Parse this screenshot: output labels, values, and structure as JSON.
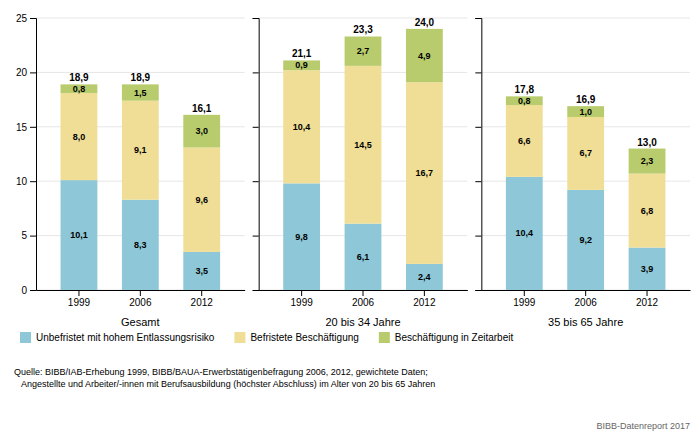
{
  "chart_data": [
    {
      "type": "bar",
      "stacked": true,
      "xlabel": "Gesamt",
      "categories": [
        "1999",
        "2006",
        "2012"
      ],
      "series": [
        {
          "name": "Unbefristet mit hohem Entlassungsrisiko",
          "color": "#8ec8d8",
          "values": [
            10.1,
            8.3,
            3.5
          ],
          "value_labels": [
            "10,1",
            "8,3",
            "3,5"
          ]
        },
        {
          "name": "Befristete Beschäftigung",
          "color": "#f0de96",
          "values": [
            8.0,
            9.1,
            9.6
          ],
          "value_labels": [
            "8,0",
            "9,1",
            "9,6"
          ]
        },
        {
          "name": "Beschäftigung in Zeitarbeit",
          "color": "#b8cc6e",
          "values": [
            0.8,
            1.5,
            3.0
          ],
          "value_labels": [
            "0,8",
            "1,5",
            "3,0"
          ]
        }
      ],
      "totals": [
        18.9,
        18.9,
        16.1
      ],
      "total_labels": [
        "18,9",
        "18,9",
        "16,1"
      ],
      "ylim": [
        0,
        25
      ],
      "yticks": [
        0,
        5,
        10,
        15,
        20,
        25
      ],
      "grid": true,
      "data_labels": true,
      "legend": "bottom"
    },
    {
      "type": "bar",
      "stacked": true,
      "xlabel": "20 bis 34 Jahre",
      "categories": [
        "1999",
        "2006",
        "2012"
      ],
      "series": [
        {
          "name": "Unbefristet mit hohem Entlassungsrisiko",
          "color": "#8ec8d8",
          "values": [
            9.8,
            6.1,
            2.4
          ],
          "value_labels": [
            "9,8",
            "6,1",
            "2,4"
          ]
        },
        {
          "name": "Befristete Beschäftigung",
          "color": "#f0de96",
          "values": [
            10.4,
            14.5,
            16.7
          ],
          "value_labels": [
            "10,4",
            "14,5",
            "16,7"
          ]
        },
        {
          "name": "Beschäftigung in Zeitarbeit",
          "color": "#b8cc6e",
          "values": [
            0.9,
            2.7,
            4.9
          ],
          "value_labels": [
            "0,9",
            "2,7",
            "4,9"
          ]
        }
      ],
      "totals": [
        21.1,
        23.3,
        24.0
      ],
      "total_labels": [
        "21,1",
        "23,3",
        "24,0"
      ],
      "ylim": [
        0,
        25
      ],
      "yticks": [
        0,
        5,
        10,
        15,
        20,
        25
      ],
      "grid": true,
      "data_labels": true,
      "tick_labels": "x"
    },
    {
      "type": "bar",
      "stacked": true,
      "xlabel": "35 bis 65 Jahre",
      "categories": [
        "1999",
        "2006",
        "2012"
      ],
      "series": [
        {
          "name": "Unbefristet mit hohem Entlassungsrisiko",
          "color": "#8ec8d8",
          "values": [
            10.4,
            9.2,
            3.9
          ],
          "value_labels": [
            "10,4",
            "9,2",
            "3,9"
          ]
        },
        {
          "name": "Befristete Beschäftigung",
          "color": "#f0de96",
          "values": [
            6.6,
            6.7,
            6.8
          ],
          "value_labels": [
            "6,6",
            "6,7",
            "6,8"
          ]
        },
        {
          "name": "Beschäftigung in Zeitarbeit",
          "color": "#b8cc6e",
          "values": [
            0.8,
            1.0,
            2.3
          ],
          "value_labels": [
            "0,8",
            "1,0",
            "2,3"
          ]
        }
      ],
      "totals": [
        17.8,
        16.9,
        13.0
      ],
      "total_labels": [
        "17,8",
        "16,9",
        "13,0"
      ],
      "ylim": [
        0,
        25
      ],
      "yticks": [
        0,
        5,
        10,
        15,
        20,
        25
      ],
      "grid": true,
      "data_labels": true,
      "tick_labels": "x"
    }
  ],
  "annotations": [
    "Quelle: BIBB/IAB-Erhebung 1999, BIBB/BAUA-Erwerbstätigenbefragung 2006, 2012, gewichtete Daten;\n   Angestellte und Arbeiter/-innen mit Berufsausbildung (höchster Abschluss) im Alter von 20 bis 65 Jahren",
    "BIBB-Datenreport 2017"
  ]
}
